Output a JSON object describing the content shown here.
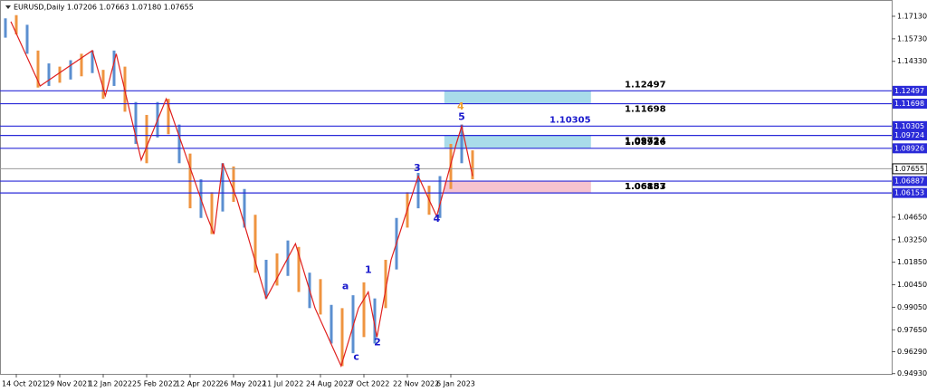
{
  "chart_data": {
    "type": "range_bar",
    "title": "EURUSD,Daily  1.07206 1.07663 1.07180 1.07655",
    "categories": [
      null,
      "14 Oct 2021",
      null,
      null,
      null,
      "29 Nov 2021",
      null,
      null,
      null,
      "12 Jan 2022",
      null,
      null,
      null,
      "25 Feb 2022",
      null,
      null,
      null,
      "12 Apr 2022",
      null,
      null,
      null,
      "26 May 2022",
      null,
      null,
      null,
      "11 Jul 2022",
      null,
      null,
      null,
      "24 Aug 2022",
      null,
      null,
      null,
      "7 Oct 2022",
      null,
      null,
      null,
      "22 Nov 2022",
      null,
      null,
      null,
      "6 Jan 2023",
      null,
      null
    ],
    "high": [
      1.17,
      1.172,
      1.166,
      1.15,
      1.142,
      1.14,
      1.144,
      1.148,
      1.15,
      1.138,
      1.15,
      1.14,
      1.118,
      1.11,
      1.118,
      1.12,
      1.104,
      1.086,
      1.07,
      1.062,
      1.08,
      1.078,
      1.064,
      1.048,
      1.02,
      1.024,
      1.032,
      1.028,
      1.012,
      1.008,
      0.992,
      0.99,
      0.998,
      1.006,
      0.996,
      1.02,
      1.046,
      1.062,
      1.074,
      1.066,
      1.072,
      1.092,
      1.104,
      1.088
    ],
    "low": [
      1.158,
      1.16,
      1.148,
      1.127,
      1.128,
      1.13,
      1.132,
      1.134,
      1.136,
      1.12,
      1.128,
      1.112,
      1.092,
      1.08,
      1.096,
      1.098,
      1.08,
      1.052,
      1.046,
      1.036,
      1.05,
      1.056,
      1.04,
      1.012,
      0.996,
      1.004,
      1.01,
      1.0,
      0.99,
      0.986,
      0.968,
      0.954,
      0.962,
      0.972,
      0.968,
      0.99,
      1.014,
      1.04,
      1.052,
      1.048,
      1.046,
      1.064,
      1.08,
      1.07
    ],
    "colors": [
      "#5b8fd0",
      "#ef9440"
    ],
    "ylim": [
      0.948,
      1.1814
    ],
    "yticks": [
      {
        "value": 1.1713,
        "label": "1.17130"
      },
      {
        "value": 1.1573,
        "label": "1.15730"
      },
      {
        "value": 1.1433,
        "label": "1.14330"
      },
      {
        "value": 1.0465,
        "label": "1.04650"
      },
      {
        "value": 1.0325,
        "label": "1.03250"
      },
      {
        "value": 1.0185,
        "label": "1.01850"
      },
      {
        "value": 1.0045,
        "label": "1.00450"
      },
      {
        "value": 0.9905,
        "label": "0.99050"
      },
      {
        "value": 0.9765,
        "label": "0.97650"
      },
      {
        "value": 0.9629,
        "label": "0.96290"
      },
      {
        "value": 0.9493,
        "label": "0.94930"
      }
    ],
    "levels": [
      {
        "value": 1.12497,
        "color": "#2a2ad8",
        "text_color": "#000000"
      },
      {
        "value": 1.11698,
        "color": "#2a2ad8",
        "text_color": "#000000"
      },
      {
        "value": 1.10305,
        "color": "#2a2ad8",
        "text_color": "#1a1acc"
      },
      {
        "value": 1.09724,
        "color": "#2a2ad8",
        "text_color": "#000000"
      },
      {
        "value": 1.08926,
        "color": "#2a2ad8",
        "text_color": "#000000"
      },
      {
        "value": 1.06887,
        "color": "#2a2ad8",
        "text_color": "#000000"
      },
      {
        "value": 1.06153,
        "color": "#2a2ad8",
        "text_color": "#000000"
      }
    ],
    "last_price": 1.07655,
    "zones": [
      {
        "from": 1.12497,
        "to": 1.11698,
        "x": [
          40.4,
          53.9
        ],
        "color": "#a9dcea"
      },
      {
        "from": 1.09724,
        "to": 1.08926,
        "x": [
          40.4,
          53.9
        ],
        "color": "#a9dcea"
      },
      {
        "from": 1.06887,
        "to": 1.06153,
        "x": [
          40.4,
          53.9
        ],
        "color": "#f6c3cf"
      }
    ],
    "zigzag": {
      "color": "#e0201e",
      "x": [
        0.5,
        3.2,
        8.0,
        9.2,
        10.2,
        12.5,
        14.8,
        18.5,
        19.2,
        20.0,
        21.3,
        24.0,
        26.7,
        28.5,
        30.9,
        32.5,
        33.4,
        34.2,
        35.5,
        38.0,
        39.7,
        41.5,
        42.0,
        43.0
      ],
      "y": [
        1.168,
        1.128,
        1.15,
        1.122,
        1.148,
        1.082,
        1.12,
        1.048,
        1.036,
        1.08,
        1.058,
        0.996,
        1.03,
        0.99,
        0.954,
        0.99,
        1.0,
        0.972,
        1.02,
        1.072,
        1.047,
        1.092,
        1.103,
        1.072
      ]
    },
    "wave_labels": [
      {
        "text": "5",
        "x": 42.0,
        "y": 1.1085,
        "color": "#1a1acc"
      },
      {
        "text": "4",
        "x": 41.9,
        "y": 1.115,
        "color": "#f0a030"
      },
      {
        "text": "3",
        "x": 37.9,
        "y": 1.0767,
        "color": "#1a1acc"
      },
      {
        "text": "4",
        "x": 39.7,
        "y": 1.0453,
        "color": "#1a1acc"
      },
      {
        "text": "1",
        "x": 33.4,
        "y": 1.0134,
        "color": "#1a1acc"
      },
      {
        "text": "2",
        "x": 34.25,
        "y": 0.9686,
        "color": "#1a1acc"
      },
      {
        "text": "a",
        "x": 31.3,
        "y": 1.0033,
        "color": "#1a1acc"
      },
      {
        "text": "c",
        "x": 32.3,
        "y": 0.9596,
        "color": "#1a1acc"
      }
    ]
  }
}
